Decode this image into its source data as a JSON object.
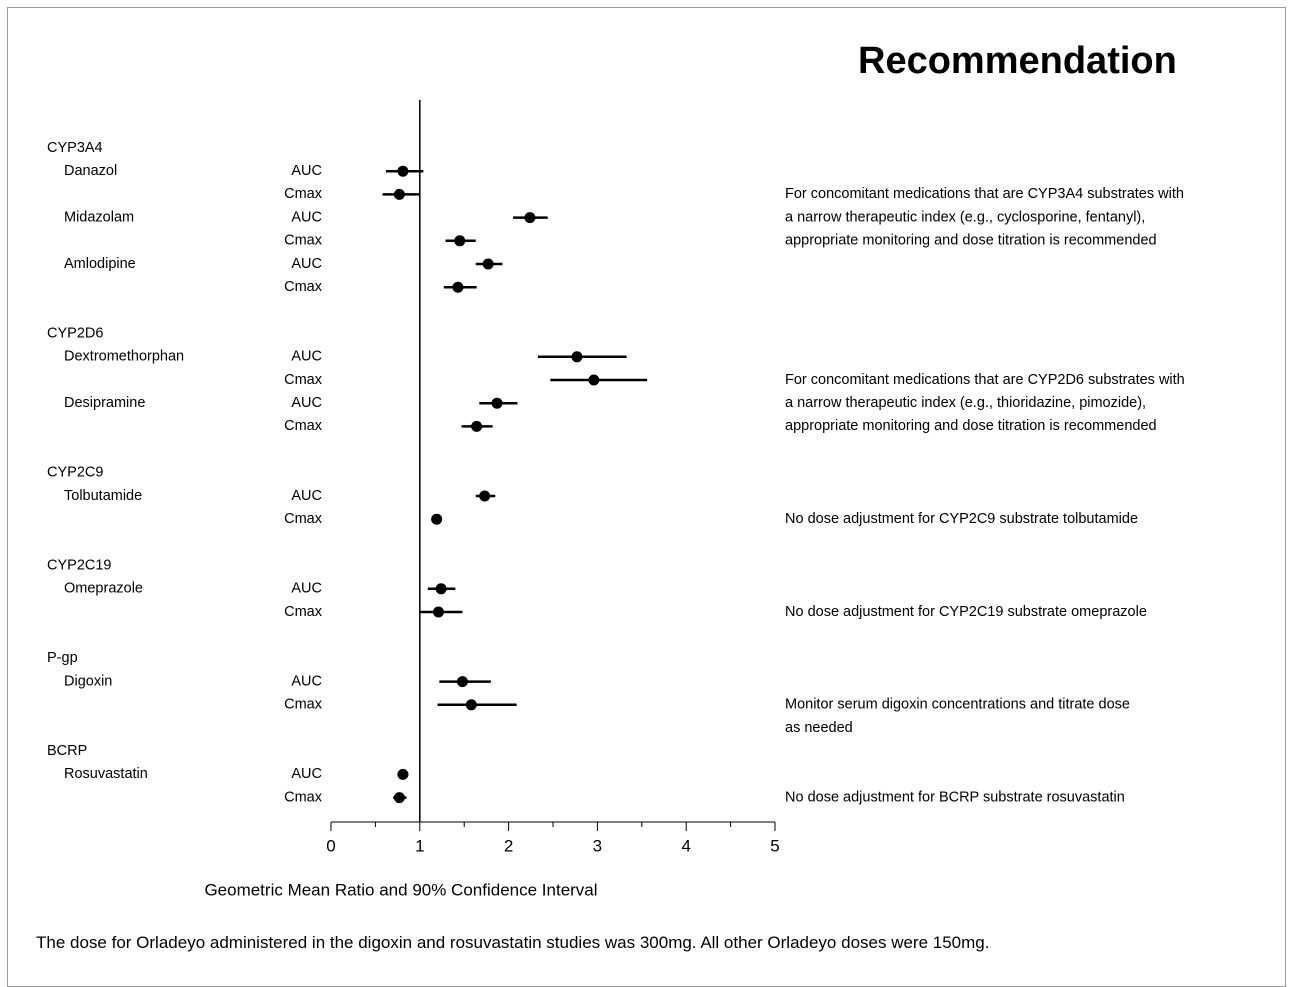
{
  "chart_data": {
    "type": "forest",
    "title": "Recommendation",
    "xlabel": "Geometric Mean Ratio and 90% Confidence Interval",
    "xlim": [
      0,
      5
    ],
    "x_ticks": [
      0,
      1,
      2,
      3,
      4,
      5
    ],
    "x_minor_step": 0.5,
    "reference_line": 1,
    "footnote": "The dose for Orladeyo administered in the digoxin and rosuvastatin studies was 300mg. All other Orladeyo doses were 150mg.",
    "groups": [
      {
        "name": "CYP3A4",
        "drugs": [
          {
            "name": "Danazol",
            "rows": [
              {
                "metric": "AUC",
                "gmr": 0.81,
                "lo": 0.62,
                "hi": 1.04
              },
              {
                "metric": "Cmax",
                "gmr": 0.77,
                "lo": 0.58,
                "hi": 1.0
              }
            ]
          },
          {
            "name": "Midazolam",
            "rows": [
              {
                "metric": "AUC",
                "gmr": 2.24,
                "lo": 2.05,
                "hi": 2.44
              },
              {
                "metric": "Cmax",
                "gmr": 1.45,
                "lo": 1.29,
                "hi": 1.63
              }
            ]
          },
          {
            "name": "Amlodipine",
            "rows": [
              {
                "metric": "AUC",
                "gmr": 1.77,
                "lo": 1.63,
                "hi": 1.93
              },
              {
                "metric": "Cmax",
                "gmr": 1.43,
                "lo": 1.27,
                "hi": 1.64
              }
            ]
          }
        ],
        "recommendation": [
          "For concomitant medications that are CYP3A4 substrates with",
          "a narrow therapeutic index (e.g., cyclosporine, fentanyl),",
          "appropriate monitoring and dose titration is recommended"
        ]
      },
      {
        "name": "CYP2D6",
        "drugs": [
          {
            "name": "Dextromethorphan",
            "rows": [
              {
                "metric": "AUC",
                "gmr": 2.77,
                "lo": 2.33,
                "hi": 3.33
              },
              {
                "metric": "Cmax",
                "gmr": 2.96,
                "lo": 2.47,
                "hi": 3.56
              }
            ]
          },
          {
            "name": "Desipramine",
            "rows": [
              {
                "metric": "AUC",
                "gmr": 1.87,
                "lo": 1.67,
                "hi": 2.1
              },
              {
                "metric": "Cmax",
                "gmr": 1.64,
                "lo": 1.47,
                "hi": 1.82
              }
            ]
          }
        ],
        "recommendation": [
          "For concomitant medications that are CYP2D6 substrates with",
          "a narrow therapeutic index (e.g., thioridazine, pimozide),",
          "appropriate monitoring and dose titration is recommended"
        ]
      },
      {
        "name": "CYP2C9",
        "drugs": [
          {
            "name": "Tolbutamide",
            "rows": [
              {
                "metric": "AUC",
                "gmr": 1.73,
                "lo": 1.63,
                "hi": 1.85
              },
              {
                "metric": "Cmax",
                "gmr": 1.19,
                "lo": 1.13,
                "hi": 1.25
              }
            ]
          }
        ],
        "recommendation": [
          "No dose adjustment for CYP2C9 substrate tolbutamide"
        ]
      },
      {
        "name": "CYP2C19",
        "drugs": [
          {
            "name": "Omeprazole",
            "rows": [
              {
                "metric": "AUC",
                "gmr": 1.24,
                "lo": 1.09,
                "hi": 1.4
              },
              {
                "metric": "Cmax",
                "gmr": 1.21,
                "lo": 1.0,
                "hi": 1.48
              }
            ]
          }
        ],
        "recommendation": [
          "No dose adjustment for CYP2C19 substrate omeprazole"
        ]
      },
      {
        "name": "P-gp",
        "drugs": [
          {
            "name": "Digoxin",
            "rows": [
              {
                "metric": "AUC",
                "gmr": 1.48,
                "lo": 1.22,
                "hi": 1.8
              },
              {
                "metric": "Cmax",
                "gmr": 1.58,
                "lo": 1.2,
                "hi": 2.09
              }
            ]
          }
        ],
        "recommendation": [
          "Monitor serum digoxin concentrations and titrate dose",
          "as needed"
        ]
      },
      {
        "name": "BCRP",
        "drugs": [
          {
            "name": "Rosuvastatin",
            "rows": [
              {
                "metric": "AUC",
                "gmr": 0.81,
                "lo": 0.75,
                "hi": 0.87
              },
              {
                "metric": "Cmax",
                "gmr": 0.77,
                "lo": 0.7,
                "hi": 0.85
              }
            ]
          }
        ],
        "recommendation": [
          "No dose adjustment for BCRP substrate rosuvastatin"
        ]
      }
    ]
  }
}
